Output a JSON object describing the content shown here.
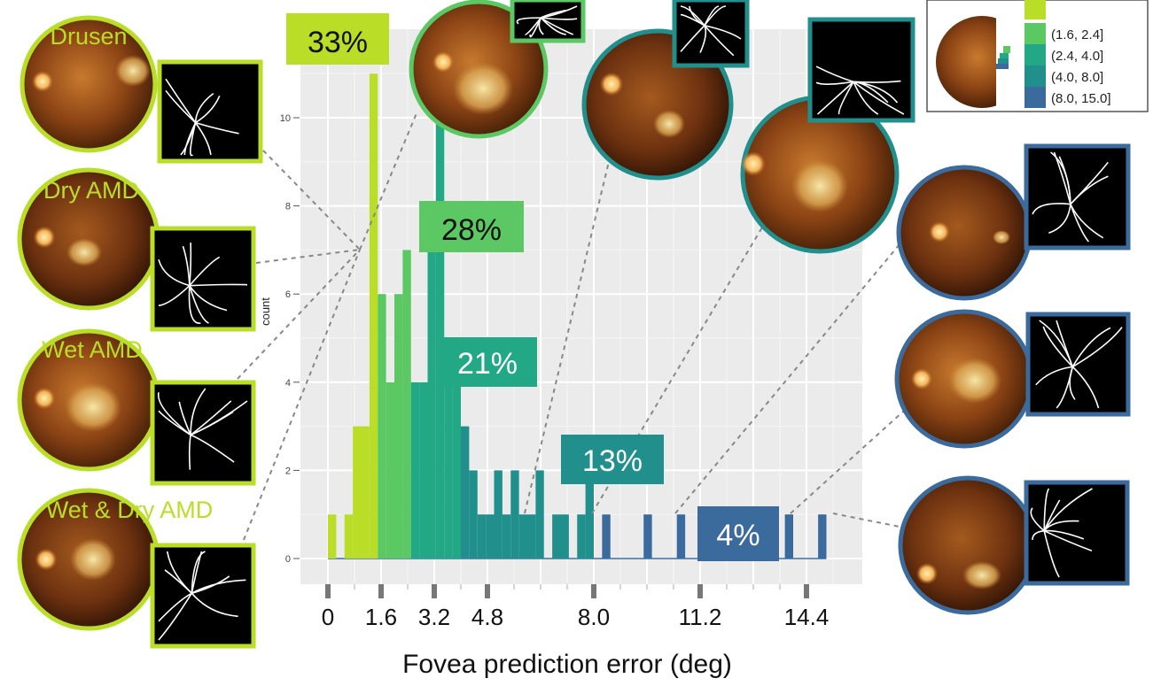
{
  "chart_data": {
    "type": "bar",
    "xlabel": "Fovea prediction error (deg)",
    "ylabel": "count",
    "x_ticks": [
      "0",
      "1.6",
      "3.2",
      "4.8",
      "8.0",
      "11.2",
      "14.4"
    ],
    "y_ticks": [
      "0",
      "2",
      "4",
      "6",
      "8",
      "10"
    ],
    "xlim": [
      0,
      15.6
    ],
    "ylim": [
      0,
      11.5
    ],
    "bin_width": 0.25,
    "bins": [
      {
        "x": 0.0,
        "count": 1
      },
      {
        "x": 0.25,
        "count": 0
      },
      {
        "x": 0.5,
        "count": 1
      },
      {
        "x": 0.75,
        "count": 3
      },
      {
        "x": 1.0,
        "count": 3
      },
      {
        "x": 1.25,
        "count": 11
      },
      {
        "x": 1.5,
        "count": 6
      },
      {
        "x": 1.75,
        "count": 4
      },
      {
        "x": 2.0,
        "count": 6
      },
      {
        "x": 2.25,
        "count": 7
      },
      {
        "x": 2.5,
        "count": 4
      },
      {
        "x": 2.75,
        "count": 4
      },
      {
        "x": 3.0,
        "count": 7
      },
      {
        "x": 3.25,
        "count": 10
      },
      {
        "x": 3.5,
        "count": 4
      },
      {
        "x": 3.75,
        "count": 5
      },
      {
        "x": 4.0,
        "count": 3
      },
      {
        "x": 4.25,
        "count": 2
      },
      {
        "x": 4.5,
        "count": 1
      },
      {
        "x": 4.75,
        "count": 1
      },
      {
        "x": 5.0,
        "count": 2
      },
      {
        "x": 5.25,
        "count": 1
      },
      {
        "x": 5.5,
        "count": 2
      },
      {
        "x": 5.75,
        "count": 1
      },
      {
        "x": 6.0,
        "count": 1
      },
      {
        "x": 6.25,
        "count": 2
      },
      {
        "x": 6.75,
        "count": 1
      },
      {
        "x": 7.0,
        "count": 1
      },
      {
        "x": 7.5,
        "count": 1
      },
      {
        "x": 7.75,
        "count": 2
      },
      {
        "x": 8.25,
        "count": 1
      },
      {
        "x": 9.5,
        "count": 1
      },
      {
        "x": 10.5,
        "count": 1
      },
      {
        "x": 11.5,
        "count": 1
      },
      {
        "x": 12.5,
        "count": 1
      },
      {
        "x": 13.75,
        "count": 1
      },
      {
        "x": 14.75,
        "count": 1
      }
    ],
    "groups": [
      {
        "name": "(1.6, 2.4]",
        "range": [
          1.6,
          2.4
        ],
        "percent_label": "28%",
        "color": "#5cc863"
      },
      {
        "name": "(2.4, 4.0]",
        "range": [
          2.4,
          4.0
        ],
        "percent_label": "21%",
        "color": "#22a884"
      },
      {
        "name": "(4.0, 8.0]",
        "range": [
          4.0,
          8.0
        ],
        "percent_label": "13%",
        "color": "#21908d"
      },
      {
        "name": "(8.0, 15.0]",
        "range": [
          8.0,
          15.0
        ],
        "percent_label": "4%",
        "color": "#3b6b9c"
      }
    ],
    "first_group": {
      "range": [
        0,
        1.6
      ],
      "percent_label": "33%",
      "color": "#bade28"
    },
    "legend_position": "top-right",
    "grid": true,
    "grid_bg": "#ebebeb"
  },
  "left_panel_labels": [
    "Drusen",
    "Dry AMD",
    "Wet AMD",
    "Wet & Dry AMD"
  ],
  "colors": {
    "lime": "#bade28",
    "teal": "#21908d",
    "blue": "#3b6b9c",
    "green": "#5cc863"
  }
}
